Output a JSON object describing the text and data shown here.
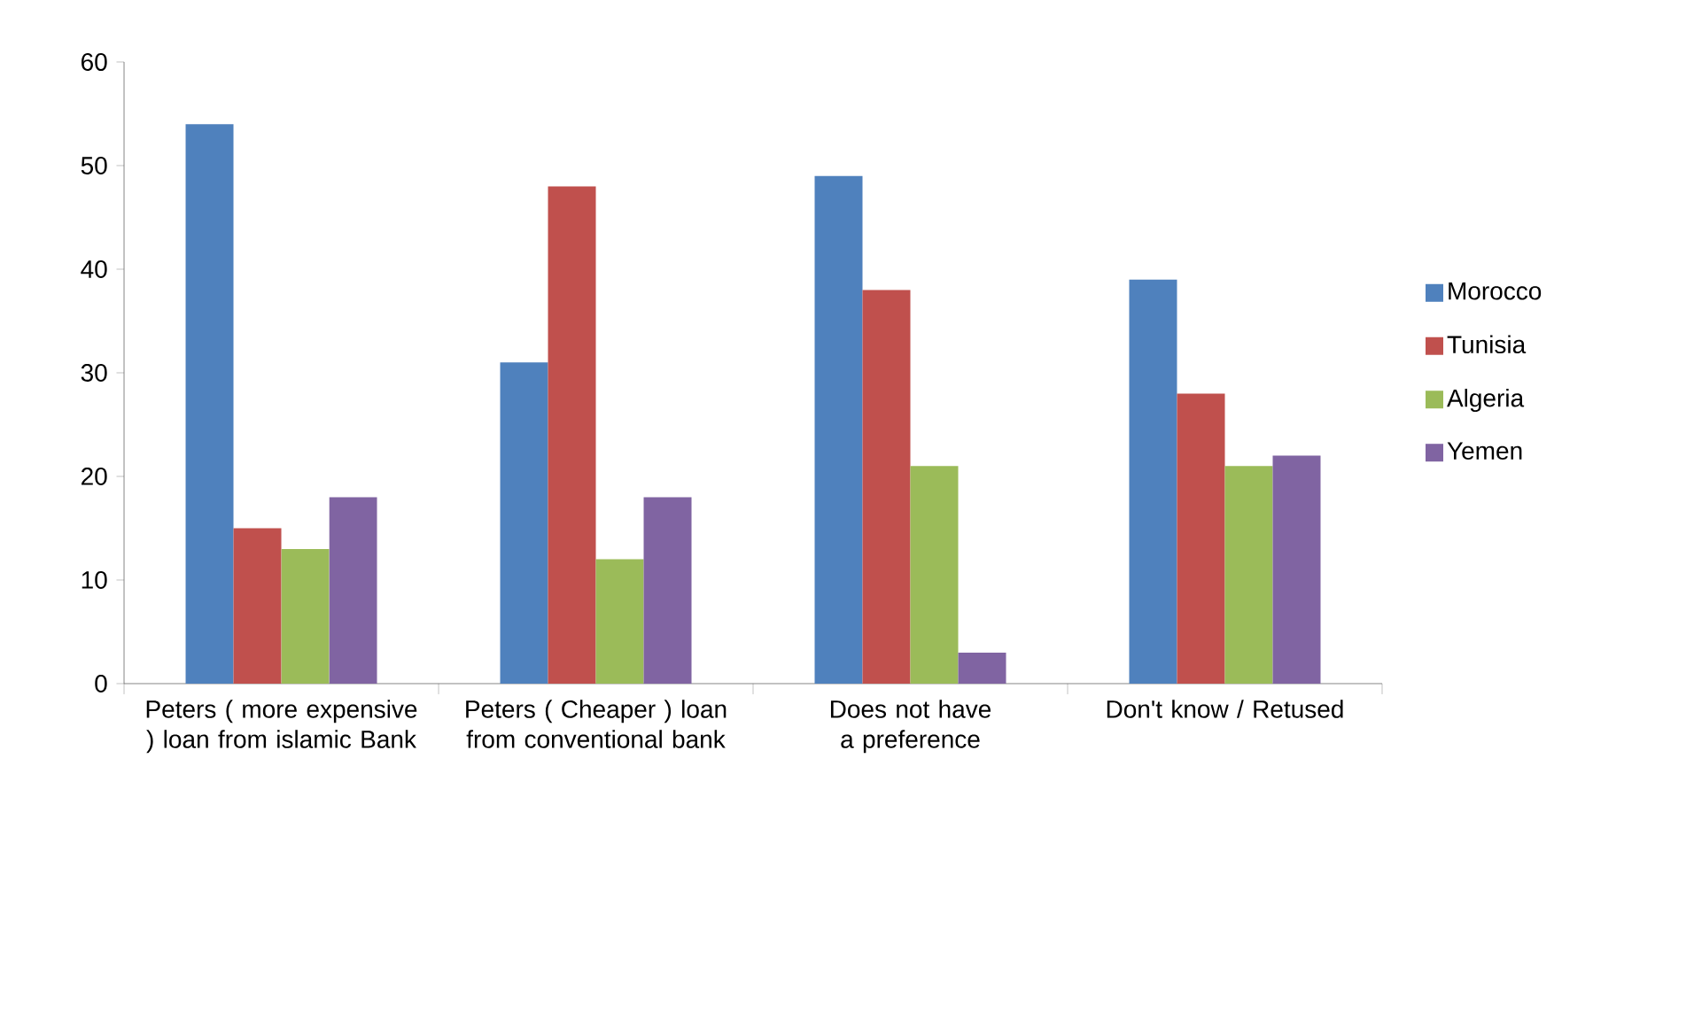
{
  "chart_data": {
    "type": "bar",
    "categories": [
      "Peters ( more expensive ) loan from islamic Bank",
      "Peters ( Cheaper ) loan from conventional bank",
      "Does not have a preference",
      "Don't know / Retused"
    ],
    "series": [
      {
        "name": "Morocco",
        "color": "#4f81bd",
        "values": [
          54,
          31,
          49,
          39
        ]
      },
      {
        "name": "Tunisia",
        "color": "#c0504d",
        "values": [
          15,
          48,
          38,
          28
        ]
      },
      {
        "name": "Algeria",
        "color": "#9bbb59",
        "values": [
          13,
          12,
          21,
          21
        ]
      },
      {
        "name": "Yemen",
        "color": "#8064a2",
        "values": [
          18,
          18,
          3,
          22
        ]
      }
    ],
    "ylim": [
      0,
      60
    ],
    "yticks": [
      0,
      10,
      20,
      30,
      40,
      50,
      60
    ],
    "grid": false,
    "legend": "right"
  }
}
